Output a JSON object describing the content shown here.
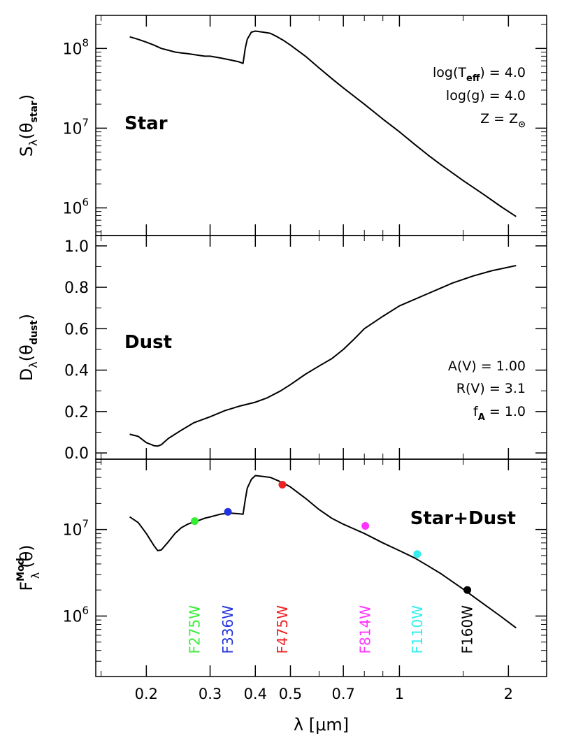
{
  "chart_data": [
    {
      "type": "line",
      "panel": "star",
      "ylabel": "S",
      "ylabel_sub": "λ",
      "ylabel_arg": "(θ",
      "ylabel_arg_sub": "star",
      "ylabel_close": ")",
      "yscale": "log",
      "ylim": [
        450000,
        260000000
      ],
      "yticks": [
        {
          "value": 100000000,
          "label": "10",
          "exp": "8"
        },
        {
          "value": 10000000,
          "label": "10",
          "exp": "7"
        },
        {
          "value": 1000000,
          "label": "10",
          "exp": "6"
        }
      ],
      "label": "Star",
      "annotations": [
        {
          "base": "log(T",
          "sub": "eff",
          "rest": ") = 4.0"
        },
        {
          "base": "log(g) = 4.0",
          "sub": "",
          "rest": ""
        },
        {
          "base": "Z = Z",
          "sub": "⊙",
          "rest": ""
        }
      ],
      "series": [
        {
          "color": "#000000",
          "points": [
            [
              0.18,
              140000000
            ],
            [
              0.19,
              130000000
            ],
            [
              0.2,
              120000000
            ],
            [
              0.21,
              110000000
            ],
            [
              0.22,
              100000000
            ],
            [
              0.23,
              95000000
            ],
            [
              0.24,
              90000000
            ],
            [
              0.25,
              88000000
            ],
            [
              0.26,
              86000000
            ],
            [
              0.27,
              84000000
            ],
            [
              0.28,
              82000000
            ],
            [
              0.29,
              80000000
            ],
            [
              0.3,
              80000000
            ],
            [
              0.32,
              76000000
            ],
            [
              0.34,
              72000000
            ],
            [
              0.36,
              68000000
            ],
            [
              0.37,
              65000000
            ],
            [
              0.375,
              100000000
            ],
            [
              0.38,
              130000000
            ],
            [
              0.39,
              160000000
            ],
            [
              0.4,
              165000000
            ],
            [
              0.42,
              160000000
            ],
            [
              0.44,
              155000000
            ],
            [
              0.46,
              140000000
            ],
            [
              0.48,
              125000000
            ],
            [
              0.5,
              110000000
            ],
            [
              0.55,
              80000000
            ],
            [
              0.6,
              57000000
            ],
            [
              0.65,
              42000000
            ],
            [
              0.7,
              32000000
            ],
            [
              0.8,
              20000000
            ],
            [
              0.9,
              13000000
            ],
            [
              1.0,
              9000000
            ],
            [
              1.1,
              6300000
            ],
            [
              1.2,
              4600000
            ],
            [
              1.3,
              3500000
            ],
            [
              1.5,
              2200000
            ],
            [
              1.7,
              1500000
            ],
            [
              1.9,
              1050000
            ],
            [
              2.1,
              780000
            ]
          ]
        }
      ]
    },
    {
      "type": "line",
      "panel": "dust",
      "ylabel": "D",
      "ylabel_sub": "λ",
      "ylabel_arg": "(θ",
      "ylabel_arg_sub": "dust",
      "ylabel_close": ")",
      "yscale": "linear",
      "ylim": [
        -0.03,
        1.05
      ],
      "yticks": [
        {
          "value": 0.0,
          "label": "0.0"
        },
        {
          "value": 0.2,
          "label": "0.2"
        },
        {
          "value": 0.4,
          "label": "0.4"
        },
        {
          "value": 0.6,
          "label": "0.6"
        },
        {
          "value": 0.8,
          "label": "0.8"
        },
        {
          "value": 1.0,
          "label": "1.0"
        }
      ],
      "label": "Dust",
      "annotations": [
        {
          "base": "A(V) = 1.00",
          "sub": "",
          "rest": ""
        },
        {
          "base": "R(V) = 3.1",
          "sub": "",
          "rest": ""
        },
        {
          "base": "f",
          "sub": "A",
          "rest": " = 1.0"
        }
      ],
      "series": [
        {
          "color": "#000000",
          "points": [
            [
              0.18,
              0.09
            ],
            [
              0.19,
              0.08
            ],
            [
              0.2,
              0.05
            ],
            [
              0.21,
              0.035
            ],
            [
              0.215,
              0.033
            ],
            [
              0.22,
              0.04
            ],
            [
              0.23,
              0.07
            ],
            [
              0.25,
              0.11
            ],
            [
              0.27,
              0.145
            ],
            [
              0.3,
              0.175
            ],
            [
              0.33,
              0.205
            ],
            [
              0.36,
              0.225
            ],
            [
              0.4,
              0.245
            ],
            [
              0.43,
              0.265
            ],
            [
              0.47,
              0.3
            ],
            [
              0.5,
              0.33
            ],
            [
              0.55,
              0.38
            ],
            [
              0.6,
              0.42
            ],
            [
              0.65,
              0.455
            ],
            [
              0.7,
              0.5
            ],
            [
              0.75,
              0.55
            ],
            [
              0.8,
              0.6
            ],
            [
              0.9,
              0.66
            ],
            [
              1.0,
              0.71
            ],
            [
              1.2,
              0.77
            ],
            [
              1.4,
              0.82
            ],
            [
              1.6,
              0.855
            ],
            [
              1.8,
              0.88
            ],
            [
              2.1,
              0.905
            ]
          ]
        }
      ]
    },
    {
      "type": "line",
      "panel": "star+dust",
      "ylabel": "F",
      "ylabel_sub": "λ",
      "ylabel_sup": "Mod",
      "ylabel_arg": "(θ)",
      "ylabel_arg_sub": "",
      "ylabel_close": "",
      "yscale": "log",
      "ylim": [
        200000,
        65000000
      ],
      "yticks": [
        {
          "value": 10000000,
          "label": "10",
          "exp": "7"
        },
        {
          "value": 1000000,
          "label": "10",
          "exp": "6"
        }
      ],
      "label": "Star+Dust",
      "annotations": [],
      "series": [
        {
          "color": "#000000",
          "points": [
            [
              0.18,
              14000000
            ],
            [
              0.19,
              12000000
            ],
            [
              0.2,
              9000000
            ],
            [
              0.21,
              6500000
            ],
            [
              0.215,
              5700000
            ],
            [
              0.22,
              5800000
            ],
            [
              0.23,
              7200000
            ],
            [
              0.24,
              9000000
            ],
            [
              0.25,
              10500000
            ],
            [
              0.26,
              11500000
            ],
            [
              0.27,
              12200000
            ],
            [
              0.28,
              12800000
            ],
            [
              0.29,
              13500000
            ],
            [
              0.3,
              14000000
            ],
            [
              0.32,
              15000000
            ],
            [
              0.34,
              15500000
            ],
            [
              0.36,
              15200000
            ],
            [
              0.37,
              15000000
            ],
            [
              0.375,
              22000000
            ],
            [
              0.38,
              30000000
            ],
            [
              0.39,
              38000000
            ],
            [
              0.4,
              42000000
            ],
            [
              0.42,
              41000000
            ],
            [
              0.44,
              40000000
            ],
            [
              0.46,
              37000000
            ],
            [
              0.48,
              34000000
            ],
            [
              0.5,
              31000000
            ],
            [
              0.55,
              23000000
            ],
            [
              0.6,
              17000000
            ],
            [
              0.65,
              13500000
            ],
            [
              0.7,
              11500000
            ],
            [
              0.8,
              9000000
            ],
            [
              0.9,
              7000000
            ],
            [
              1.0,
              5700000
            ],
            [
              1.1,
              4700000
            ],
            [
              1.2,
              3800000
            ],
            [
              1.3,
              3100000
            ],
            [
              1.5,
              2050000
            ],
            [
              1.7,
              1400000
            ],
            [
              1.9,
              1000000
            ],
            [
              2.1,
              730000
            ]
          ]
        }
      ],
      "filters": [
        {
          "name": "F275W",
          "wavelength": 0.272,
          "flux": 12500000,
          "color": "#33ee33"
        },
        {
          "name": "F336W",
          "wavelength": 0.336,
          "flux": 16000000,
          "color": "#2233dd"
        },
        {
          "name": "F475W",
          "wavelength": 0.475,
          "flux": 33000000,
          "color": "#ee2222"
        },
        {
          "name": "F814W",
          "wavelength": 0.805,
          "flux": 11000000,
          "color": "#ff33ff"
        },
        {
          "name": "F110W",
          "wavelength": 1.12,
          "flux": 5200000,
          "color": "#33eeee"
        },
        {
          "name": "F160W",
          "wavelength": 1.54,
          "flux": 2000000,
          "color": "#000000"
        }
      ]
    }
  ],
  "xaxis": {
    "label": "λ [μm]",
    "scale": "log",
    "xlim": [
      0.145,
      2.55
    ],
    "ticks": [
      {
        "value": 0.2,
        "label": "0.2"
      },
      {
        "value": 0.3,
        "label": "0.3"
      },
      {
        "value": 0.4,
        "label": "0.4"
      },
      {
        "value": 0.5,
        "label": "0.5"
      },
      {
        "value": 0.7,
        "label": "0.7"
      },
      {
        "value": 1.0,
        "label": "1"
      },
      {
        "value": 2.0,
        "label": "2"
      }
    ]
  }
}
